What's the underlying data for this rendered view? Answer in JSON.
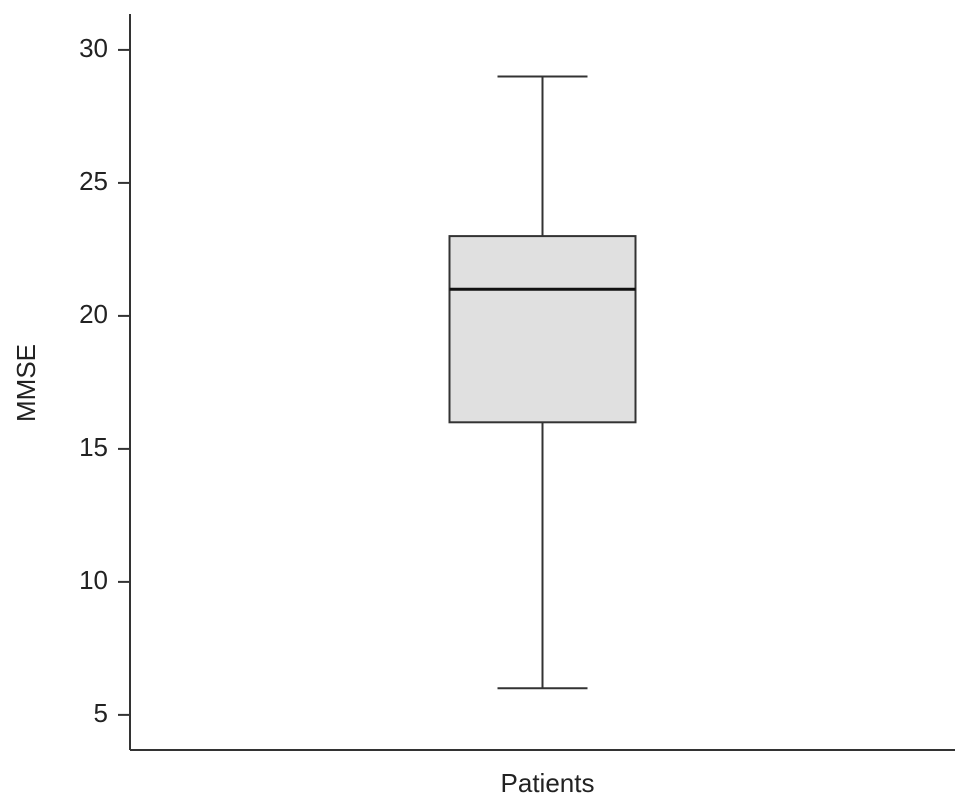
{
  "chart_data": {
    "type": "box",
    "y_label": "MMSE",
    "categories": [
      "Patients"
    ],
    "boxes": [
      {
        "min": 6,
        "q1": 16,
        "median": 21,
        "q3": 23,
        "max": 29
      }
    ],
    "color": "#e0e0e0",
    "ylim": [
      3.68,
      31.35
    ],
    "yticks": [
      5,
      10,
      15,
      20,
      25,
      30
    ],
    "grid": false
  }
}
